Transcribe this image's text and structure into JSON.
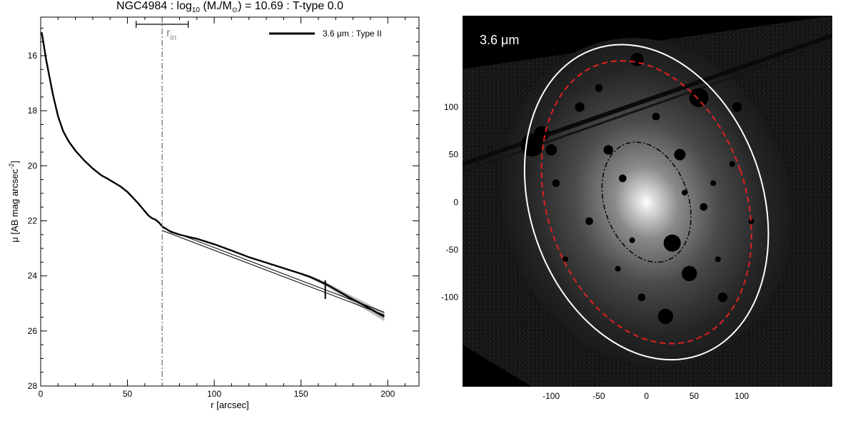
{
  "page": {
    "title": {
      "galaxy": "NGC4984",
      "log": "log",
      "log_sub": "10",
      "mass_open": "(M",
      "mass_star": "*",
      "mass_slash": "/M",
      "mass_sun": "⊙",
      "mass_close": ") = 10.69 : T-type 0.0"
    }
  },
  "chart_data": [
    {
      "type": "line",
      "title": "NGC4984 : log10 (M*/M⊙) = 10.69 : T-type 0.0",
      "xlabel": "r [arcsec]",
      "ylabel": "μ [AB mag arcsec⁻²]",
      "ylabel_parts": {
        "main": "μ [AB mag arcsec",
        "sup": "-2",
        "end": "]"
      },
      "xlim": [
        0,
        218
      ],
      "ylim": [
        28,
        14.6
      ],
      "y_inverted": true,
      "xticks": [
        0,
        50,
        100,
        150,
        200
      ],
      "yticks": [
        16,
        18,
        20,
        22,
        24,
        26,
        28
      ],
      "legend": {
        "label": "3.6 μm : Type II",
        "position": "top-right"
      },
      "series": [
        {
          "name": "3.6 μm : Type II",
          "x": [
            0.5,
            1,
            2,
            3,
            5,
            7,
            10,
            13,
            16,
            20,
            25,
            30,
            35,
            38,
            42,
            46,
            50,
            53,
            56,
            58,
            60,
            62,
            64,
            66,
            68,
            70,
            75,
            80,
            85,
            90,
            95,
            100,
            110,
            120,
            130,
            140,
            150,
            155,
            160,
            165,
            170,
            175,
            180,
            185,
            190,
            195,
            198
          ],
          "y": [
            15.15,
            15.3,
            15.7,
            16.1,
            16.75,
            17.4,
            18.2,
            18.75,
            19.1,
            19.45,
            19.8,
            20.1,
            20.35,
            20.45,
            20.6,
            20.75,
            20.95,
            21.15,
            21.35,
            21.5,
            21.65,
            21.8,
            21.9,
            21.95,
            22.05,
            22.2,
            22.4,
            22.5,
            22.58,
            22.65,
            22.75,
            22.85,
            23.08,
            23.32,
            23.52,
            23.72,
            23.92,
            24.03,
            24.17,
            24.32,
            24.5,
            24.68,
            24.86,
            25.02,
            25.2,
            25.38,
            25.48
          ]
        }
      ],
      "fit_lines": [
        {
          "x": [
            70,
            198
          ],
          "y": [
            22.25,
            25.32
          ]
        },
        {
          "x": [
            70,
            198
          ],
          "y": [
            22.35,
            25.42
          ]
        }
      ],
      "error_band_x": [
        150,
        198
      ],
      "vline": {
        "x": 70,
        "label_main": "r",
        "label_sub": "in"
      },
      "r_in_errorbar": [
        55,
        85
      ],
      "break_marker": {
        "x": 164,
        "y": 24.5
      }
    },
    {
      "type": "image",
      "band_label": "3.6 μm",
      "xlim": [
        -193,
        195
      ],
      "ylim": [
        -194,
        196
      ],
      "xticks": [
        -100,
        -50,
        0,
        50,
        100
      ],
      "yticks": [
        100,
        50,
        0,
        -50,
        -100
      ],
      "xticks_labels": [
        "-100",
        "-50",
        "0",
        "50",
        "100"
      ],
      "yticks_labels": [
        "100",
        "50",
        "0",
        "-50",
        "-100"
      ],
      "ellipses": [
        {
          "name": "outer-white",
          "center": [
            0,
            0
          ],
          "a": 170,
          "b": 122,
          "pa_deg": 71,
          "style": "solid",
          "color": "#ffffff"
        },
        {
          "name": "red-dashed",
          "center": [
            0,
            0
          ],
          "a": 153,
          "b": 104,
          "pa_deg": 71,
          "style": "dashed",
          "color": "#e02020"
        },
        {
          "name": "inner-dashdot",
          "center": [
            0,
            0
          ],
          "a": 65,
          "b": 44,
          "pa_deg": 71,
          "style": "dashdot",
          "color": "#000000"
        }
      ],
      "colors": {
        "background": "#000000",
        "galaxy_core": "#ffffff"
      }
    }
  ]
}
